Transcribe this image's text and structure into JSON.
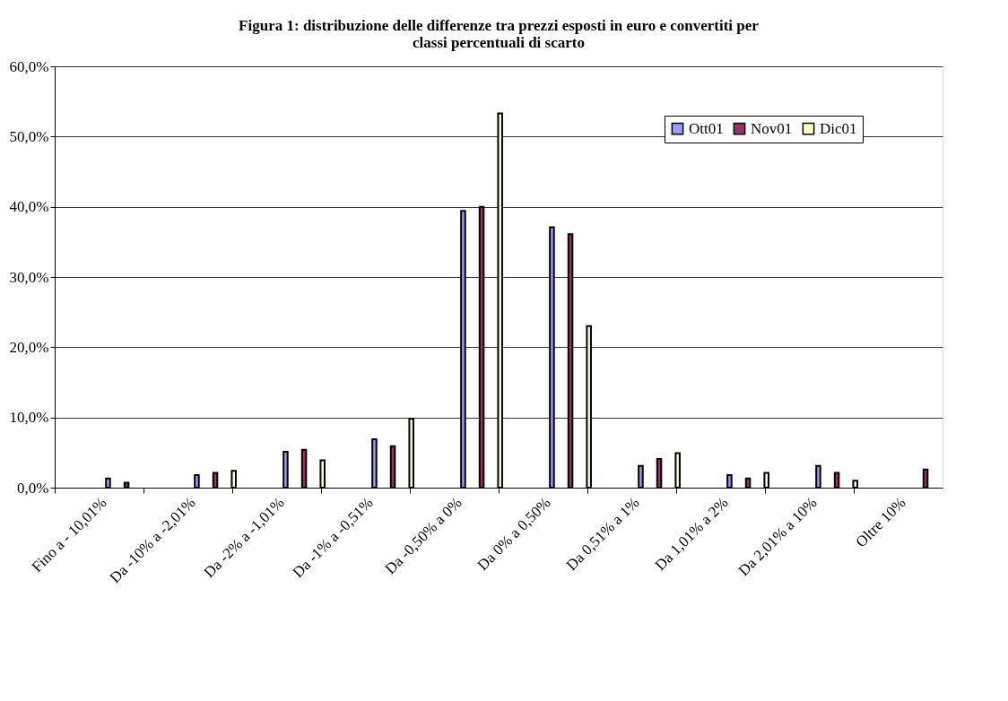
{
  "chart_data": {
    "type": "bar",
    "title": "Figura 1: distribuzione delle differenze tra prezzi esposti in euro e convertiti per classi percentuali di scarto",
    "categories": [
      "Fino a - 10,01%",
      "Da -10% a -2,01%",
      "Da -2% a -1,01%",
      "Da -1% a -0,51%",
      "Da -0,50% a 0%",
      "Da 0% a 0,50%",
      "Da 0,51% a 1%",
      "Da 1,01% a 2%",
      "Da 2,01% a 10%",
      "Oltre 10%"
    ],
    "series": [
      {
        "name": "Ott01",
        "color": "#9999ff",
        "values": [
          1.3,
          1.8,
          5.1,
          6.9,
          39.4,
          37.1,
          3.1,
          1.8,
          3.1,
          null
        ]
      },
      {
        "name": "Nov01",
        "color": "#993366",
        "values": [
          0.7,
          2.1,
          5.4,
          5.9,
          40.0,
          36.1,
          4.1,
          1.3,
          2.1,
          2.6
        ]
      },
      {
        "name": "Dic01",
        "color": "#ffffcc",
        "values": [
          null,
          2.4,
          3.9,
          9.8,
          53.3,
          23.0,
          4.9,
          2.1,
          1.0,
          null
        ]
      }
    ],
    "ylim": [
      0,
      60
    ],
    "yticks": [
      {
        "value": 0,
        "label": "0,0%"
      },
      {
        "value": 10,
        "label": "10,0%"
      },
      {
        "value": 20,
        "label": "20,0%"
      },
      {
        "value": 30,
        "label": "30,0%"
      },
      {
        "value": 40,
        "label": "40,0%"
      },
      {
        "value": 50,
        "label": "50,0%"
      },
      {
        "value": 60,
        "label": "60,0%"
      }
    ],
    "grid": "y",
    "legend": "top right"
  }
}
